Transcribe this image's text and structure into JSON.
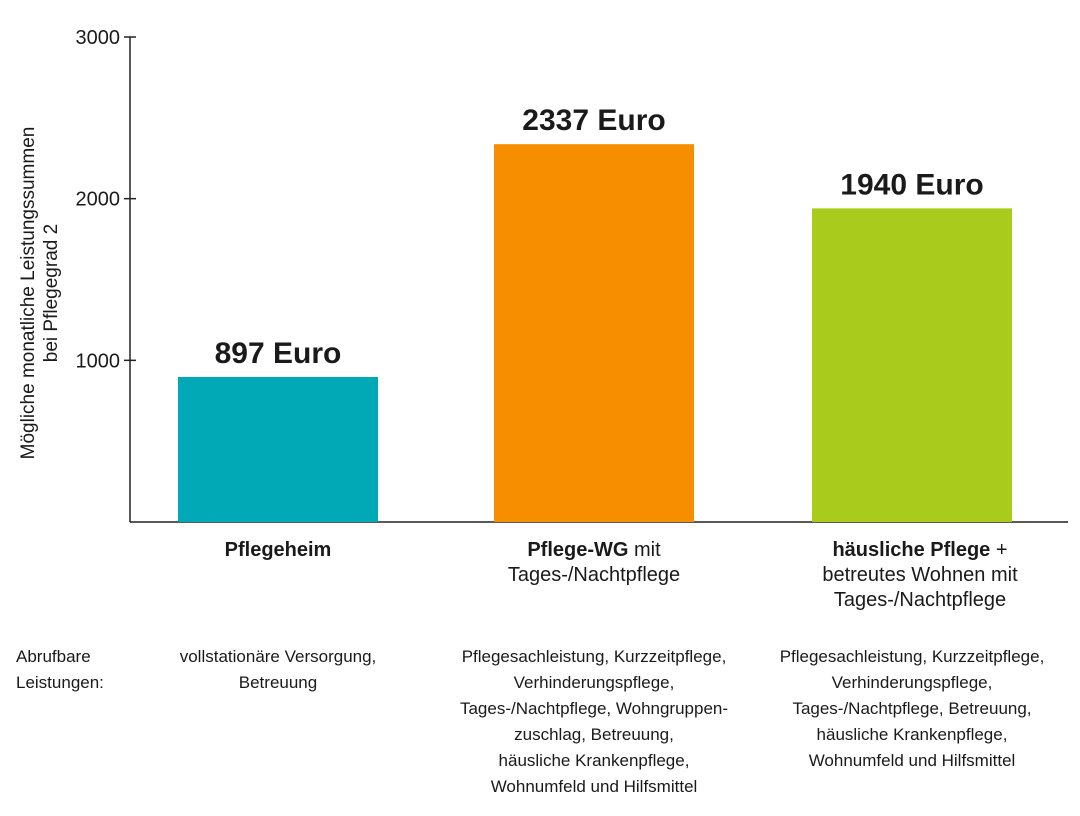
{
  "chart_data": {
    "type": "bar",
    "ylabel_lines": [
      "Mögliche monatliche Leistungssummen",
      "bei Pflegegrad 2"
    ],
    "ylim": [
      0,
      3000
    ],
    "yticks": [
      1000,
      2000,
      3000
    ],
    "categories": [
      "Pflegeheim",
      "Pflege-WG mit Tages-/Nachtpflege",
      "häusliche Pflege + betreutes Wohnen mit Tages-/Nachtpflege"
    ],
    "values": [
      897,
      2337,
      1940
    ],
    "value_labels": [
      "897 Euro",
      "2337 Euro",
      "1940 Euro"
    ],
    "colors": [
      "#00a9b5",
      "#f78e00",
      "#a9cb1c"
    ],
    "grid": false
  },
  "category_labels": [
    {
      "bold": "Pflegeheim",
      "rest": "",
      "line2": "",
      "line3": ""
    },
    {
      "bold": "Pflege-WG",
      "rest": " mit",
      "line2": "Tages-/Nachtpflege",
      "line3": ""
    },
    {
      "bold": "häusliche Pflege",
      "rest": " +",
      "line2": "betreutes Wohnen mit",
      "line3": "Tages-/Nachtpflege"
    }
  ],
  "leistungen": {
    "label_line1": "Abrufbare",
    "label_line2": "Leistungen:",
    "columns": [
      [
        "vollstationäre Versorgung,",
        "Betreuung"
      ],
      [
        "Pflegesachleistung, Kurzzeitpflege,",
        "Verhinderungspflege,",
        "Tages-/Nachtpflege, Wohngruppen-",
        "zuschlag, Betreuung,",
        "häusliche Krankenpflege,",
        "Wohnumfeld und Hilfsmittel"
      ],
      [
        "Pflegesachleistung, Kurzzeitpflege,",
        "Verhinderungspflege,",
        "Tages-/Nachtpflege, Betreuung,",
        "häusliche Krankenpflege,",
        "Wohnumfeld und Hilfsmittel"
      ]
    ]
  }
}
